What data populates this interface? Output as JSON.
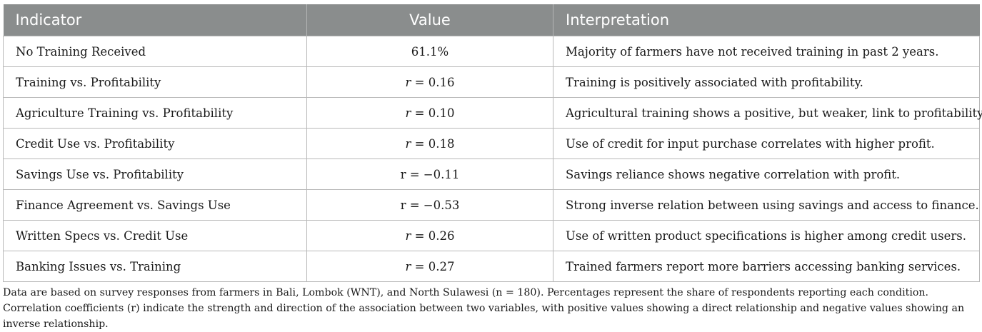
{
  "table": {
    "headers": [
      "Indicator",
      "Value",
      "Interpretation"
    ],
    "rows": [
      {
        "indicator": "No Training Received",
        "value": "61.1%",
        "interpretation": "Majority of farmers have not received training in past 2 years."
      },
      {
        "indicator": "Training vs. Profitability",
        "value": "r = 0.16",
        "interpretation": "Training is positively associated with profitability."
      },
      {
        "indicator": "Agriculture Training vs. Profitability",
        "value": "r = 0.10",
        "interpretation": "Agricultural training shows a positive, but weaker, link to profitability."
      },
      {
        "indicator": "Credit Use vs. Profitability",
        "value": "r = 0.18",
        "interpretation": "Use of credit for input purchase correlates with higher profit."
      },
      {
        "indicator": "Savings Use vs. Profitability",
        "value": "r = −0.11",
        "interpretation": "Savings reliance shows negative correlation with profit."
      },
      {
        "indicator": "Finance Agreement vs. Savings Use",
        "value": "r = −0.53",
        "interpretation": "Strong inverse relation between using savings and access to finance."
      },
      {
        "indicator": "Written Specs vs. Credit Use",
        "value": "r = 0.26",
        "interpretation": "Use of written product specifications is higher among credit users."
      },
      {
        "indicator": "Banking Issues vs. Training",
        "value": "r = 0.27",
        "interpretation": "Trained farmers report more barriers accessing banking services."
      }
    ]
  },
  "footnote": "Data are based on survey responses from farmers in Bali, Lombok (WNT), and North Sulawesi (n = 180). Percentages represent the share of respondents reporting each condition. Correlation coefficients (r) indicate the strength and direction of the association between two variables, with positive values showing a direct relationship and negative values showing an inverse relationship."
}
